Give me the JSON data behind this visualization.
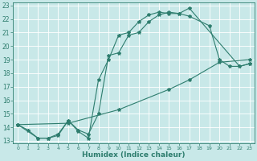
{
  "title": "",
  "xlabel": "Humidex (Indice chaleur)",
  "ylabel": "",
  "bg_color": "#c8e8e8",
  "line_color": "#2e7d6e",
  "grid_color": "#b0d0d0",
  "xlim": [
    -0.5,
    23.5
  ],
  "ylim": [
    12.8,
    23.2
  ],
  "xticks": [
    0,
    1,
    2,
    3,
    4,
    5,
    6,
    7,
    8,
    9,
    10,
    11,
    12,
    13,
    14,
    15,
    16,
    17,
    18,
    19,
    20,
    21,
    22,
    23
  ],
  "yticks": [
    13,
    14,
    15,
    16,
    17,
    18,
    19,
    20,
    21,
    22,
    23
  ],
  "line1": {
    "x": [
      0,
      1,
      2,
      3,
      4,
      5,
      6,
      7,
      8,
      9,
      10,
      11,
      12,
      13,
      14,
      15,
      16,
      17,
      22,
      23
    ],
    "y": [
      14.2,
      13.8,
      13.2,
      13.2,
      13.4,
      14.5,
      13.7,
      13.2,
      17.5,
      19.0,
      20.8,
      21.0,
      21.8,
      22.3,
      22.5,
      22.4,
      22.4,
      22.8,
      18.5,
      18.7
    ]
  },
  "line2": {
    "x": [
      0,
      2,
      3,
      4,
      5,
      6,
      7,
      8,
      9,
      10,
      11,
      12,
      13,
      14,
      15,
      16,
      17,
      19,
      20,
      21,
      22,
      23
    ],
    "y": [
      14.2,
      13.2,
      13.2,
      13.5,
      14.5,
      13.8,
      13.5,
      15.0,
      19.3,
      19.5,
      20.8,
      21.0,
      21.8,
      22.3,
      22.5,
      22.4,
      22.2,
      21.5,
      19.0,
      18.5,
      18.5,
      18.7
    ]
  },
  "line3": {
    "x": [
      0,
      5,
      10,
      15,
      17,
      20,
      23
    ],
    "y": [
      14.2,
      14.3,
      15.3,
      16.8,
      17.5,
      18.8,
      19.0
    ]
  }
}
